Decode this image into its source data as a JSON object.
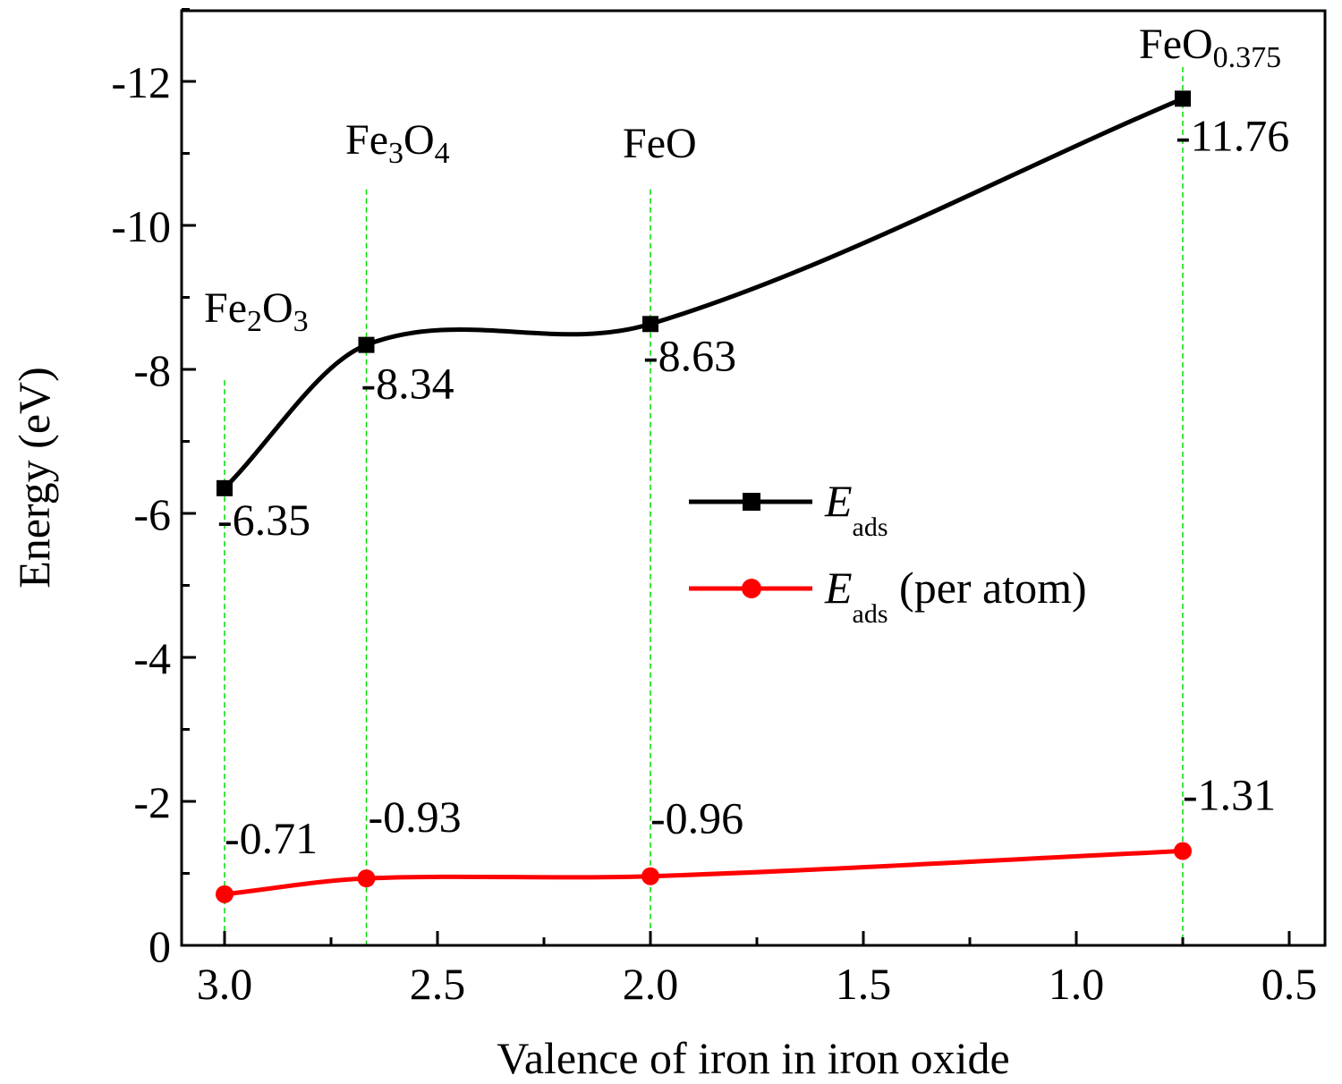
{
  "chart_data": {
    "type": "line",
    "xlabel": "Valence of iron in iron oxide",
    "ylabel": "Energy (eV)",
    "xlim": [
      3.1,
      0.43
    ],
    "ylim": [
      0,
      -13
    ],
    "x_ticks": [
      3.0,
      2.5,
      2.0,
      1.5,
      1.0,
      0.5
    ],
    "x_tick_labels": [
      "3.0",
      "2.5",
      "2.0",
      "1.5",
      "1.0",
      "0.5"
    ],
    "y_ticks": [
      0,
      -2,
      -4,
      -6,
      -8,
      -10,
      -12
    ],
    "y_tick_labels": [
      "0",
      "-2",
      "-4",
      "-6",
      "-8",
      "-10",
      "-12"
    ],
    "x": [
      3.0,
      2.667,
      2.0,
      0.75
    ],
    "compounds": [
      {
        "base": "Fe",
        "sub1": "2",
        "mid": "O",
        "sub2": "3"
      },
      {
        "base": "Fe",
        "sub1": "3",
        "mid": "O",
        "sub2": "4"
      },
      {
        "base": "FeO",
        "sub1": "",
        "mid": "",
        "sub2": ""
      },
      {
        "base": "FeO",
        "sub1": "0.375",
        "mid": "",
        "sub2": ""
      }
    ],
    "series": [
      {
        "name": "E_ads",
        "legend_main": "E",
        "legend_sub": "ads",
        "legend_suffix": "",
        "values": [
          -6.35,
          -8.34,
          -8.63,
          -11.76
        ],
        "labels": [
          "-6.35",
          "-8.34",
          "-8.63",
          "-11.76"
        ],
        "color": "#000000",
        "marker": "square"
      },
      {
        "name": "E_ads (per atom)",
        "legend_main": "E",
        "legend_sub": "ads",
        "legend_suffix": " (per atom)",
        "values": [
          -0.71,
          -0.93,
          -0.96,
          -1.31
        ],
        "labels": [
          "-0.71",
          "-0.93",
          "-0.96",
          "-1.31"
        ],
        "color": "#ff0000",
        "marker": "circle"
      }
    ],
    "guide_color": "#00dd00",
    "legend_position": "center-right"
  }
}
